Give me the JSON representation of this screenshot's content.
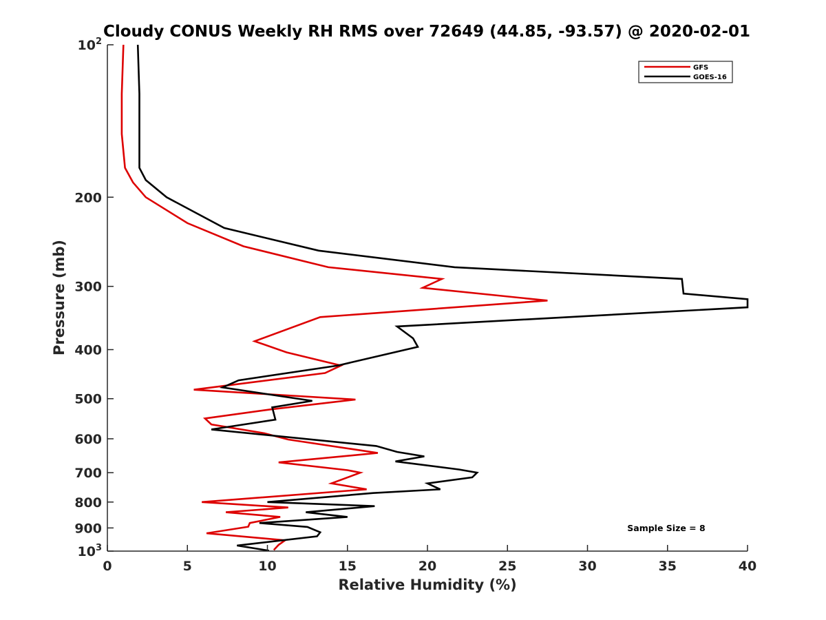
{
  "chart_data": {
    "type": "line",
    "title": "Cloudy CONUS Weekly RH RMS over 72649 (44.85, -93.57) @ 2020-02-01",
    "xlabel": "Relative Humidity (%)",
    "ylabel": "Pressure (mb)",
    "xlim": [
      0,
      40
    ],
    "ylim": [
      100,
      1000
    ],
    "y_scale": "log",
    "y_reversed": true,
    "grid": false,
    "legend_placement": "top-right",
    "x_ticks": [
      "0",
      "5",
      "10",
      "15",
      "20",
      "25",
      "30",
      "35",
      "40"
    ],
    "y_ticks": [
      {
        "value": 100,
        "base": "10",
        "exp": "2"
      },
      {
        "value": 200,
        "base": "200",
        "exp": ""
      },
      {
        "value": 300,
        "base": "300",
        "exp": ""
      },
      {
        "value": 400,
        "base": "400",
        "exp": ""
      },
      {
        "value": 500,
        "base": "500",
        "exp": ""
      },
      {
        "value": 600,
        "base": "600",
        "exp": ""
      },
      {
        "value": 700,
        "base": "700",
        "exp": ""
      },
      {
        "value": 800,
        "base": "800",
        "exp": ""
      },
      {
        "value": 900,
        "base": "900",
        "exp": ""
      },
      {
        "value": 1000,
        "base": "10",
        "exp": "3"
      }
    ],
    "annotation": "Sample Size = 8",
    "series": [
      {
        "name": "GFS",
        "color": "#dd0000",
        "points": [
          [
            1.0,
            100
          ],
          [
            0.9,
            125
          ],
          [
            0.9,
            150
          ],
          [
            1.1,
            175
          ],
          [
            1.6,
            187
          ],
          [
            2.4,
            200
          ],
          [
            5.0,
            225
          ],
          [
            8.5,
            250
          ],
          [
            13.8,
            275
          ],
          [
            20.9,
            290
          ],
          [
            19.7,
            302
          ],
          [
            27.5,
            320
          ],
          [
            13.3,
            345
          ],
          [
            9.2,
            385
          ],
          [
            11.2,
            405
          ],
          [
            14.6,
            430
          ],
          [
            13.6,
            445
          ],
          [
            5.4,
            480
          ],
          [
            15.5,
            502
          ],
          [
            10.2,
            525
          ],
          [
            6.1,
            547
          ],
          [
            6.5,
            562
          ],
          [
            9.8,
            585
          ],
          [
            11.3,
            602
          ],
          [
            16.9,
            640
          ],
          [
            10.7,
            668
          ],
          [
            15.0,
            692
          ],
          [
            15.8,
            700
          ],
          [
            14.0,
            735
          ],
          [
            16.2,
            755
          ],
          [
            5.9,
            800
          ],
          [
            11.3,
            820
          ],
          [
            7.4,
            838
          ],
          [
            10.8,
            856
          ],
          [
            8.9,
            880
          ],
          [
            8.8,
            895
          ],
          [
            6.2,
            922
          ],
          [
            11.1,
            952
          ],
          [
            10.7,
            972
          ],
          [
            10.4,
            995
          ]
        ]
      },
      {
        "name": "GOES-16",
        "color": "#000000",
        "points": [
          [
            1.9,
            100
          ],
          [
            2.0,
            125
          ],
          [
            2.0,
            150
          ],
          [
            2.0,
            175
          ],
          [
            2.4,
            185
          ],
          [
            3.7,
            200
          ],
          [
            7.3,
            230
          ],
          [
            13.2,
            255
          ],
          [
            21.7,
            275
          ],
          [
            35.9,
            290
          ],
          [
            36.0,
            310
          ],
          [
            40.0,
            318
          ],
          [
            40.0,
            330
          ],
          [
            18.1,
            360
          ],
          [
            19.1,
            380
          ],
          [
            19.4,
            395
          ],
          [
            14.4,
            430
          ],
          [
            8.2,
            460
          ],
          [
            7.2,
            475
          ],
          [
            12.8,
            505
          ],
          [
            10.3,
            520
          ],
          [
            10.5,
            550
          ],
          [
            6.5,
            575
          ],
          [
            16.8,
            620
          ],
          [
            18.1,
            637
          ],
          [
            19.8,
            650
          ],
          [
            18.0,
            665
          ],
          [
            22.0,
            690
          ],
          [
            23.1,
            700
          ],
          [
            22.8,
            715
          ],
          [
            20.0,
            735
          ],
          [
            20.8,
            755
          ],
          [
            16.6,
            768
          ],
          [
            10.0,
            800
          ],
          [
            16.7,
            815
          ],
          [
            12.4,
            838
          ],
          [
            15.0,
            856
          ],
          [
            9.5,
            880
          ],
          [
            12.5,
            896
          ],
          [
            13.3,
            918
          ],
          [
            13.1,
            935
          ],
          [
            8.1,
            975
          ],
          [
            10.1,
            998
          ]
        ]
      }
    ]
  }
}
